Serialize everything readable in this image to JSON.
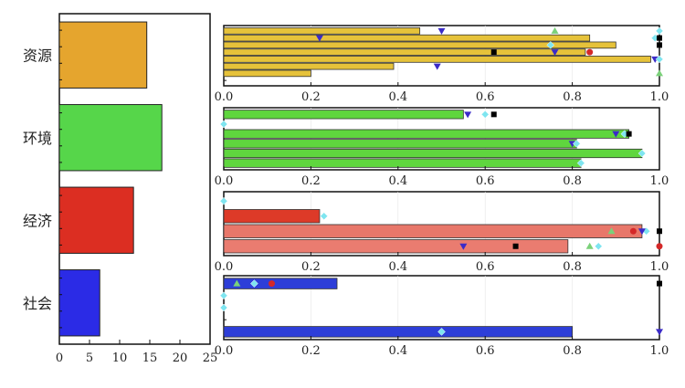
{
  "chart_data": [
    {
      "type": "bar",
      "orientation": "horizontal",
      "categories": [
        "资源",
        "环境",
        "经济",
        "社会"
      ],
      "values": [
        14.5,
        17,
        12.3,
        6.7
      ],
      "colors": [
        "#E5A52E",
        "#56D64A",
        "#DC2E22",
        "#2B2BE6"
      ],
      "xlim": [
        0,
        25
      ],
      "xticks": [
        "0",
        "5",
        "10",
        "15",
        "20",
        "25"
      ]
    },
    {
      "type": "bar",
      "orientation": "horizontal",
      "xlim": [
        0,
        1.0
      ],
      "xticks": [
        "0.0",
        "0.2",
        "0.4",
        "0.6",
        "0.8",
        "1.0"
      ],
      "marker_colors": {
        "square": "#000000",
        "circle": "#D42828",
        "triangle_up": "#7BD17A",
        "triangle_down": "#3B2BC8",
        "diamond": "#7FE5F0"
      },
      "panels": [
        {
          "category": "资源",
          "bar_color": "#E6C23A",
          "bar_values": [
            0.45,
            0.84,
            0.9,
            0.83,
            0.98,
            0.39,
            0.2,
            0
          ],
          "markers": [
            {
              "row": 0,
              "shape": "triangle_up",
              "x": 0.76
            },
            {
              "row": 0,
              "shape": "triangle_down",
              "x": 0.5
            },
            {
              "row": 0,
              "shape": "diamond",
              "x": 1.0
            },
            {
              "row": 1,
              "shape": "triangle_down",
              "x": 0.22
            },
            {
              "row": 1,
              "shape": "diamond",
              "x": 0.99
            },
            {
              "row": 1,
              "shape": "square",
              "x": 1.0
            },
            {
              "row": 2,
              "shape": "diamond",
              "x": 0.75
            },
            {
              "row": 2,
              "shape": "square",
              "x": 1.0
            },
            {
              "row": 3,
              "shape": "square",
              "x": 0.62
            },
            {
              "row": 3,
              "shape": "triangle_down",
              "x": 0.76
            },
            {
              "row": 3,
              "shape": "circle",
              "x": 0.84
            },
            {
              "row": 4,
              "shape": "triangle_down",
              "x": 0.99
            },
            {
              "row": 4,
              "shape": "diamond",
              "x": 1.0
            },
            {
              "row": 5,
              "shape": "triangle_down",
              "x": 0.49
            },
            {
              "row": 6,
              "shape": "triangle_up",
              "x": 1.0
            }
          ]
        },
        {
          "category": "环境",
          "bar_color": "#5FD63E",
          "bar_values": [
            0.55,
            0,
            0.93,
            0.81,
            0.96,
            0.82
          ],
          "markers": [
            {
              "row": 0,
              "shape": "triangle_down",
              "x": 0.56
            },
            {
              "row": 0,
              "shape": "diamond",
              "x": 0.6
            },
            {
              "row": 0,
              "shape": "square",
              "x": 0.62
            },
            {
              "row": 1,
              "shape": "diamond",
              "x": 0.0
            },
            {
              "row": 2,
              "shape": "triangle_down",
              "x": 0.9
            },
            {
              "row": 2,
              "shape": "diamond",
              "x": 0.92
            },
            {
              "row": 2,
              "shape": "square",
              "x": 0.93
            },
            {
              "row": 3,
              "shape": "triangle_down",
              "x": 0.8
            },
            {
              "row": 3,
              "shape": "diamond",
              "x": 0.81
            },
            {
              "row": 4,
              "shape": "diamond",
              "x": 0.96
            },
            {
              "row": 5,
              "shape": "diamond",
              "x": 0.82
            }
          ]
        },
        {
          "category": "经济",
          "bar_color": "#DD3A28",
          "bar_values": [
            0,
            0.22,
            0.96,
            0.79
          ],
          "bar_colors": [
            "#DD3A28",
            "#DD3A28",
            "#E8776A",
            "#EA7C70"
          ],
          "markers": [
            {
              "row": 0,
              "shape": "diamond",
              "x": 0.0
            },
            {
              "row": 1,
              "shape": "diamond",
              "x": 0.23
            },
            {
              "row": 2,
              "shape": "triangle_up",
              "x": 0.89
            },
            {
              "row": 2,
              "shape": "circle",
              "x": 0.94
            },
            {
              "row": 2,
              "shape": "diamond",
              "x": 0.97
            },
            {
              "row": 2,
              "shape": "triangle_down",
              "x": 0.96
            },
            {
              "row": 2,
              "shape": "square",
              "x": 1.0
            },
            {
              "row": 3,
              "shape": "triangle_down",
              "x": 0.55
            },
            {
              "row": 3,
              "shape": "square",
              "x": 0.67
            },
            {
              "row": 3,
              "shape": "triangle_up",
              "x": 0.84
            },
            {
              "row": 3,
              "shape": "diamond",
              "x": 0.86
            },
            {
              "row": 3,
              "shape": "circle",
              "x": 1.0
            }
          ]
        },
        {
          "category": "社会",
          "bar_color": "#2D3ED8",
          "bar_values": [
            0.26,
            0,
            0,
            0,
            0.8
          ],
          "markers": [
            {
              "row": 0,
              "shape": "triangle_up",
              "x": 0.03
            },
            {
              "row": 0,
              "shape": "diamond",
              "x": 0.07
            },
            {
              "row": 0,
              "shape": "circle",
              "x": 0.11
            },
            {
              "row": 0,
              "shape": "square",
              "x": 1.0
            },
            {
              "row": 1,
              "shape": "diamond",
              "x": 0.0
            },
            {
              "row": 2,
              "shape": "diamond",
              "x": 0.0
            },
            {
              "row": 4,
              "shape": "diamond",
              "x": 0.5
            },
            {
              "row": 4,
              "shape": "triangle_down",
              "x": 1.0
            }
          ]
        }
      ]
    }
  ]
}
